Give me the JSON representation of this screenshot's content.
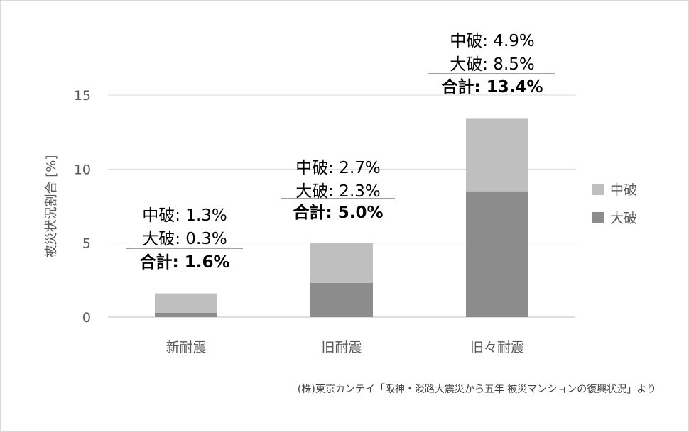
{
  "chart_data": {
    "type": "bar",
    "stacked": true,
    "categories": [
      "新耐震",
      "旧耐震",
      "旧々耐震"
    ],
    "series": [
      {
        "name": "大破",
        "values": [
          0.3,
          2.3,
          8.5
        ],
        "color": "#8c8c8c"
      },
      {
        "name": "中破",
        "values": [
          1.3,
          2.7,
          4.9
        ],
        "color": "#bfbfbf"
      }
    ],
    "ylabel": "被災状況割合 [%]",
    "xlabel": "",
    "ylim": [
      0,
      15
    ],
    "yticks": [
      "0",
      "5",
      "10",
      "15"
    ],
    "grid": true,
    "legend_position": "right",
    "annotations": [
      {
        "category": "新耐震",
        "line1": "中破: 1.3%",
        "line2": "大破: 0.3%",
        "total": "合計: 1.6%"
      },
      {
        "category": "旧耐震",
        "line1": "中破: 2.7%",
        "line2": "大破: 2.3%",
        "total": "合計: 5.0%"
      },
      {
        "category": "旧々耐震",
        "line1": "中破: 4.9%",
        "line2": "大破: 8.5%",
        "total": "合計: 13.4%"
      }
    ]
  },
  "legend": [
    {
      "label": "中破",
      "color": "#bfbfbf"
    },
    {
      "label": "大破",
      "color": "#8c8c8c"
    }
  ],
  "source": "(株)東京カンテイ「阪神・淡路大震災から五年 被災マンションの復興状況」より"
}
